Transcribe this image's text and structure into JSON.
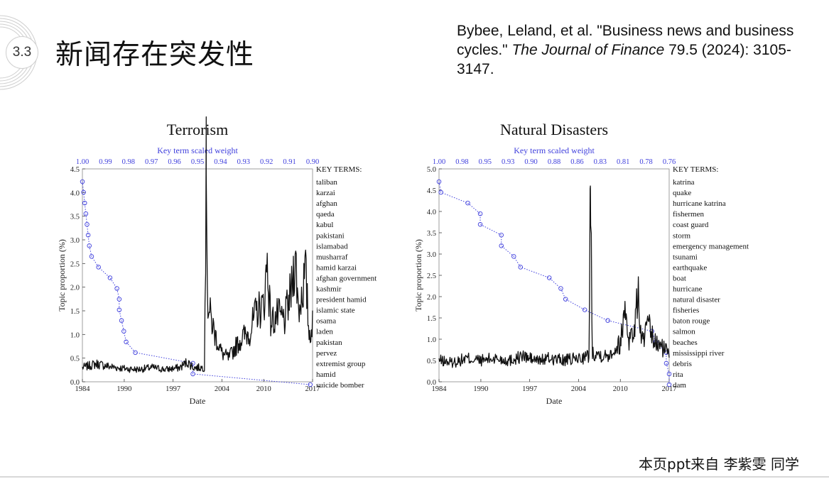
{
  "slide": {
    "section_number": "3.3",
    "title": "新闻存在突发性",
    "footer": "本页ppt来自 李紫雯 同学"
  },
  "citation": {
    "pre": "Bybee, Leland, et al. \"Business news and business cycles.\" ",
    "journal": "The Journal of Finance",
    "post": " 79.5 (2024): 3105-3147."
  },
  "colors": {
    "series": "#111111",
    "weights": "#4040dd",
    "axis": "#222222"
  },
  "chart_data": [
    {
      "type": "line",
      "title": "Terrorism",
      "xlabel": "Date",
      "ylabel": "Topic proportion (%)",
      "xlim": [
        1984,
        2017
      ],
      "ylim": [
        0,
        4.5
      ],
      "x_ticks": [
        "1984",
        "1990",
        "1997",
        "2004",
        "2010",
        "2017"
      ],
      "x_tick_values": [
        1984,
        1990,
        1997,
        2004,
        2010,
        2017
      ],
      "y_ticks": [
        "0.0",
        "0.5",
        "1.0",
        "1.5",
        "2.0",
        "2.5",
        "3.0",
        "3.5",
        "4.0",
        "4.5"
      ],
      "y_tick_values": [
        0,
        0.5,
        1,
        1.5,
        2,
        2.5,
        3,
        3.5,
        4,
        4.5
      ],
      "top_axis_label": "Key term scaled weight",
      "top_ticks": [
        "1.00",
        "0.99",
        "0.98",
        "0.97",
        "0.96",
        "0.95",
        "0.94",
        "0.93",
        "0.92",
        "0.91",
        "0.90"
      ],
      "key_terms_header": "KEY TERMS:",
      "key_terms": [
        "taliban",
        "karzai",
        "afghan",
        "qaeda",
        "kabul",
        "pakistani",
        "islamabad",
        "musharraf",
        "hamid karzai",
        "afghan government",
        "kashmir",
        "president hamid",
        "islamic state",
        "osama",
        "laden",
        "pakistan",
        "pervez",
        "extremist group",
        "hamid",
        "suicide bomber"
      ],
      "key_term_weights": [
        1.0,
        0.9995,
        0.999,
        0.9985,
        0.998,
        0.9975,
        0.997,
        0.996,
        0.993,
        0.988,
        0.985,
        0.984,
        0.984,
        0.983,
        0.982,
        0.981,
        0.977,
        0.952,
        0.952,
        0.901
      ],
      "series": [
        {
          "values": [
            {
              "x": 1984,
              "y": 0.3
            },
            {
              "x": 1986,
              "y": 0.38
            },
            {
              "x": 1988,
              "y": 0.32
            },
            {
              "x": 1990,
              "y": 0.28
            },
            {
              "x": 1992,
              "y": 0.26
            },
            {
              "x": 1994,
              "y": 0.3
            },
            {
              "x": 1996,
              "y": 0.26
            },
            {
              "x": 1998,
              "y": 0.3
            },
            {
              "x": 1999,
              "y": 0.42
            },
            {
              "x": 2000,
              "y": 0.3
            },
            {
              "x": 2001.5,
              "y": 0.3
            },
            {
              "x": 2001.75,
              "y": 4.4
            },
            {
              "x": 2002,
              "y": 1.6
            },
            {
              "x": 2003,
              "y": 1.0
            },
            {
              "x": 2004,
              "y": 0.6
            },
            {
              "x": 2005,
              "y": 0.5
            },
            {
              "x": 2006,
              "y": 0.75
            },
            {
              "x": 2007,
              "y": 0.95
            },
            {
              "x": 2008,
              "y": 1.05
            },
            {
              "x": 2009,
              "y": 1.5
            },
            {
              "x": 2010,
              "y": 1.6
            },
            {
              "x": 2010.5,
              "y": 2.55
            },
            {
              "x": 2011,
              "y": 1.25
            },
            {
              "x": 2012,
              "y": 1.4
            },
            {
              "x": 2013,
              "y": 1.3
            },
            {
              "x": 2014,
              "y": 1.95
            },
            {
              "x": 2014.5,
              "y": 2.7
            },
            {
              "x": 2015,
              "y": 1.5
            },
            {
              "x": 2016,
              "y": 2.3
            },
            {
              "x": 2016.5,
              "y": 1.0
            },
            {
              "x": 2017,
              "y": 1.2
            }
          ]
        }
      ]
    },
    {
      "type": "line",
      "title": "Natural Disasters",
      "xlabel": "Date",
      "ylabel": "Topic proportion (%)",
      "xlim": [
        1984,
        2017
      ],
      "ylim": [
        0,
        5.0
      ],
      "x_ticks": [
        "1984",
        "1990",
        "1997",
        "2004",
        "2010",
        "2017"
      ],
      "x_tick_values": [
        1984,
        1990,
        1997,
        2004,
        2010,
        2017
      ],
      "y_ticks": [
        "0.0",
        "0.5",
        "1.0",
        "1.5",
        "2.0",
        "2.5",
        "3.0",
        "3.5",
        "4.0",
        "4.5",
        "5.0"
      ],
      "y_tick_values": [
        0,
        0.5,
        1,
        1.5,
        2,
        2.5,
        3,
        3.5,
        4,
        4.5,
        5
      ],
      "top_axis_label": "Key term scaled weight",
      "top_ticks": [
        "1.00",
        "0.98",
        "0.95",
        "0.93",
        "0.90",
        "0.88",
        "0.86",
        "0.83",
        "0.81",
        "0.78",
        "0.76"
      ],
      "key_terms_header": "KEY TERMS:",
      "key_terms": [
        "katrina",
        "quake",
        "hurricane katrina",
        "fishermen",
        "coast guard",
        "storm",
        "emergency management",
        "tsunami",
        "earthquake",
        "boat",
        "hurricane",
        "natural disaster",
        "fisheries",
        "baton rouge",
        "salmon",
        "beaches",
        "mississippi river",
        "debris",
        "rita",
        "dam"
      ],
      "key_term_weights": [
        1.0,
        0.998,
        0.97,
        0.957,
        0.957,
        0.935,
        0.935,
        0.922,
        0.915,
        0.885,
        0.873,
        0.868,
        0.848,
        0.824,
        0.778,
        0.774,
        0.763,
        0.763,
        0.76,
        0.76
      ],
      "series": [
        {
          "values": [
            {
              "x": 1984,
              "y": 0.5
            },
            {
              "x": 1986,
              "y": 0.45
            },
            {
              "x": 1988,
              "y": 0.55
            },
            {
              "x": 1990,
              "y": 0.5
            },
            {
              "x": 1992,
              "y": 0.55
            },
            {
              "x": 1994,
              "y": 0.5
            },
            {
              "x": 1996,
              "y": 0.6
            },
            {
              "x": 1998,
              "y": 0.5
            },
            {
              "x": 2000,
              "y": 0.55
            },
            {
              "x": 2002,
              "y": 0.5
            },
            {
              "x": 2004,
              "y": 0.55
            },
            {
              "x": 2005.5,
              "y": 0.6
            },
            {
              "x": 2005.7,
              "y": 4.6
            },
            {
              "x": 2006,
              "y": 0.7
            },
            {
              "x": 2008,
              "y": 0.6
            },
            {
              "x": 2010,
              "y": 0.9
            },
            {
              "x": 2010.7,
              "y": 1.8
            },
            {
              "x": 2011.2,
              "y": 1.0
            },
            {
              "x": 2012,
              "y": 1.2
            },
            {
              "x": 2012.6,
              "y": 2.15
            },
            {
              "x": 2013,
              "y": 0.9
            },
            {
              "x": 2014,
              "y": 1.3
            },
            {
              "x": 2015,
              "y": 0.9
            },
            {
              "x": 2016,
              "y": 0.8
            },
            {
              "x": 2017,
              "y": 0.7
            }
          ]
        }
      ]
    }
  ]
}
